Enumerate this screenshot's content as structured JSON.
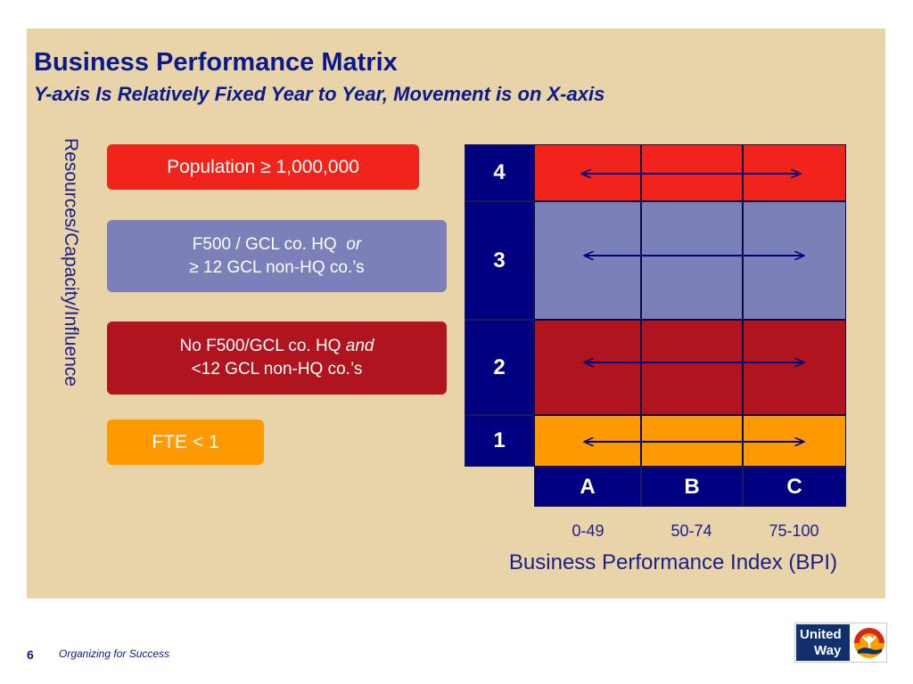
{
  "slide": {
    "title": "Business Performance Matrix",
    "subtitle": "Y-axis Is Relatively Fixed Year to Year, Movement is on X-axis",
    "page_number": "6",
    "footer_text": "Organizing for Success"
  },
  "y_axis": {
    "label": "Resources/Capacity/Influence"
  },
  "legend": [
    {
      "level": "4",
      "line1": "Population ≥ 1,000,000",
      "color": "#f0241a"
    },
    {
      "level": "3",
      "line1": "F500 / GCL co. HQ",
      "line1_em": "or",
      "line2": "≥ 12 GCL non-HQ co.’s",
      "color": "#7b80b8"
    },
    {
      "level": "2",
      "line1": "No F500/GCL co.  HQ",
      "line1_em": "and",
      "line2": "<12 GCL non-HQ co.’s",
      "color": "#b0151f"
    },
    {
      "level": "1",
      "line1": "FTE < 1",
      "color": "#ff9900"
    }
  ],
  "matrix": {
    "rows": [
      {
        "label": "4",
        "color": "#f0241a"
      },
      {
        "label": "3",
        "color": "#7b80b8"
      },
      {
        "label": "2",
        "color": "#b0151f"
      },
      {
        "label": "1",
        "color": "#ff9900"
      }
    ],
    "columns": [
      {
        "label": "A",
        "range": "0-49"
      },
      {
        "label": "B",
        "range": "50-74"
      },
      {
        "label": "C",
        "range": "75-100"
      }
    ],
    "arrow_color": "#000080"
  },
  "x_axis": {
    "label": "Business Performance Index (BPI)"
  },
  "logo": {
    "line1": "United",
    "line2": "Way",
    "name": "united-way-logo",
    "colors": {
      "navy": "#10306e",
      "orange": "#f5a000",
      "red": "#d9261c"
    }
  }
}
